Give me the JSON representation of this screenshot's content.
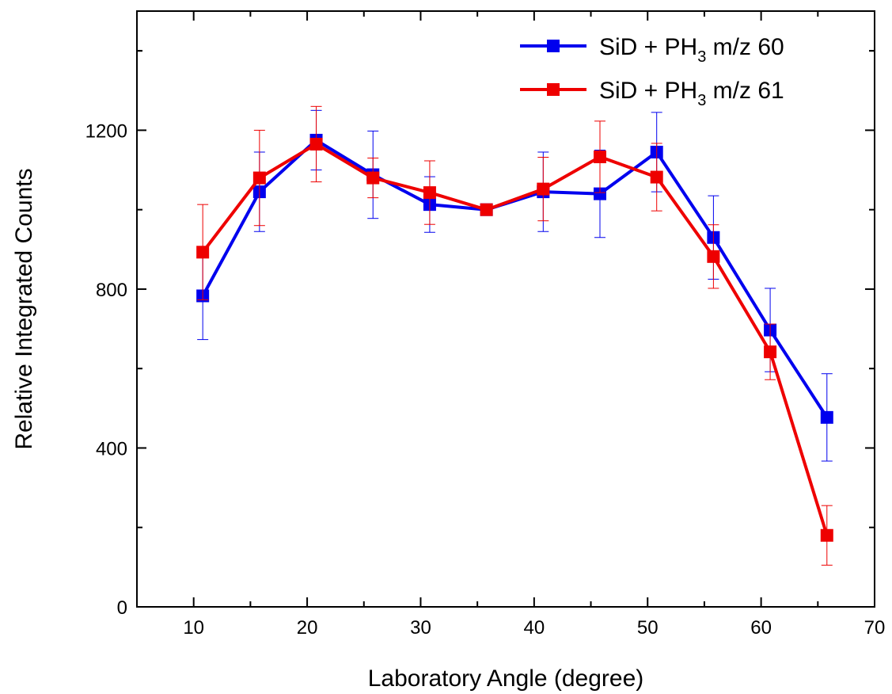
{
  "chart_data": {
    "type": "line",
    "xlabel": "Laboratory Angle (degree)",
    "ylabel": "Relative Integrated Counts",
    "xlim": [
      5,
      70
    ],
    "ylim": [
      0,
      1500
    ],
    "xticks": [
      10,
      20,
      30,
      40,
      50,
      60,
      70
    ],
    "yticks": [
      0,
      400,
      800,
      1200
    ],
    "xtick_labels": [
      "10",
      "20",
      "30",
      "40",
      "50",
      "60",
      "70"
    ],
    "ytick_labels": [
      "0",
      "400",
      "800",
      "1200"
    ],
    "legend_position": "top-right",
    "grid": false,
    "series": [
      {
        "name": "SiD + PH3 m/z 60",
        "legend_parts": {
          "pre": "SiD + PH",
          "sub": "3",
          "post": " m/z 60"
        },
        "color": "#0000ee",
        "marker": "square",
        "x": [
          10.8,
          15.8,
          20.8,
          25.8,
          30.8,
          35.8,
          40.8,
          45.8,
          50.8,
          55.8,
          60.8,
          65.8
        ],
        "y": [
          783,
          1045,
          1175,
          1088,
          1013,
          1000,
          1045,
          1040,
          1145,
          930,
          697,
          477
        ],
        "err": [
          110,
          100,
          75,
          110,
          70,
          0,
          100,
          110,
          100,
          105,
          105,
          110
        ]
      },
      {
        "name": "SiD + PH3 m/z 61",
        "legend_parts": {
          "pre": "SiD + PH",
          "sub": "3",
          "post": " m/z 61"
        },
        "color": "#ee0000",
        "marker": "square",
        "x": [
          10.8,
          15.8,
          20.8,
          25.8,
          30.8,
          35.8,
          40.8,
          45.8,
          50.8,
          55.8,
          60.8,
          65.8
        ],
        "y": [
          893,
          1080,
          1165,
          1080,
          1043,
          1000,
          1052,
          1133,
          1082,
          882,
          642,
          180
        ],
        "err": [
          120,
          120,
          95,
          50,
          80,
          0,
          80,
          90,
          85,
          80,
          70,
          75
        ]
      }
    ]
  }
}
